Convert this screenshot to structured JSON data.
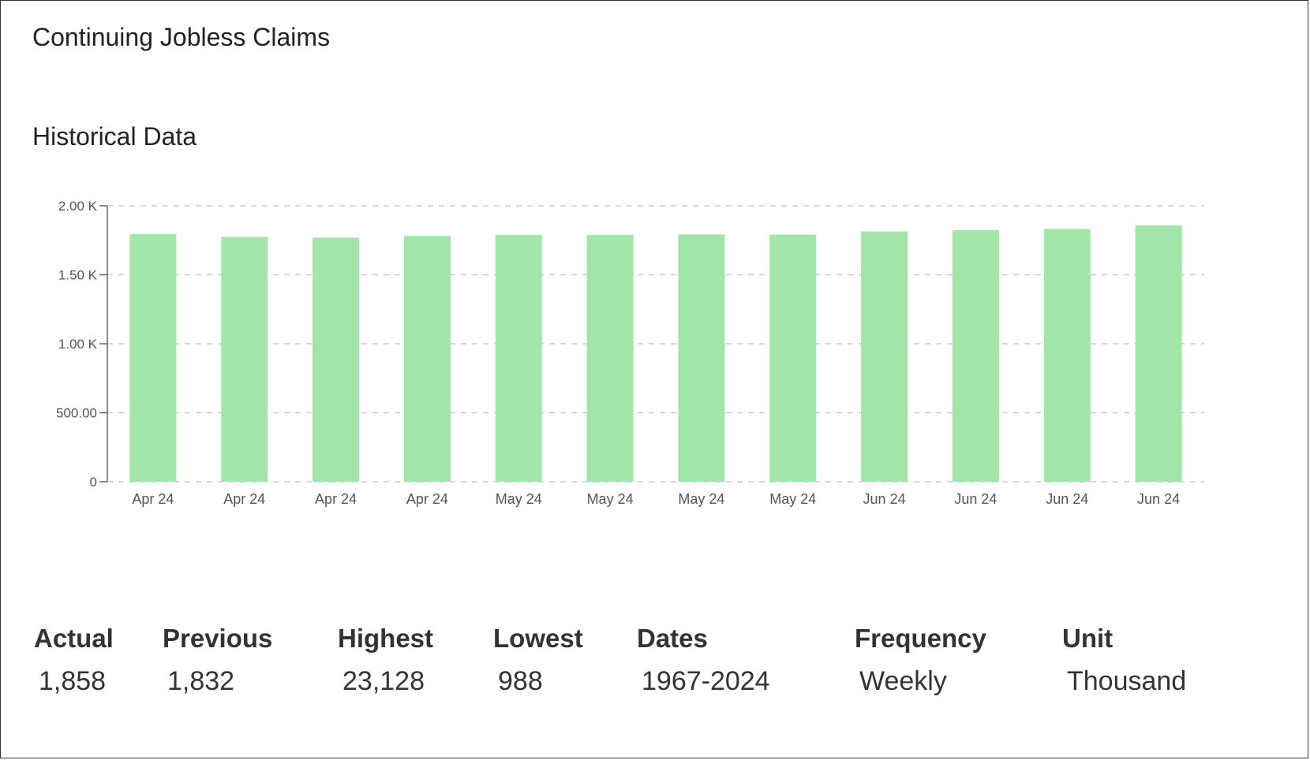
{
  "header": {
    "title": "Continuing Jobless Claims"
  },
  "section": {
    "title": "Historical Data"
  },
  "chart_data": {
    "type": "bar",
    "categories": [
      "Apr 24",
      "Apr 24",
      "Apr 24",
      "Apr 24",
      "May 24",
      "May 24",
      "May 24",
      "May 24",
      "Jun 24",
      "Jun 24",
      "Jun 24",
      "Jun 24"
    ],
    "values": [
      1.796,
      1.774,
      1.769,
      1.781,
      1.788,
      1.789,
      1.792,
      1.791,
      1.814,
      1.823,
      1.832,
      1.858
    ],
    "ylim": [
      0,
      2.0
    ],
    "yticks": [
      0,
      0.5,
      1.0,
      1.5,
      2.0
    ],
    "ytick_labels": [
      "0",
      "500.00",
      "1.00 K",
      "1.50 K",
      "2.00 K"
    ],
    "grid": true,
    "bar_color": "#a1e5a8",
    "axis_color": "#666666",
    "grid_color": "#cccccc"
  },
  "stats": [
    {
      "label": "Actual",
      "value": "1,858"
    },
    {
      "label": "Previous",
      "value": "1,832"
    },
    {
      "label": "Highest",
      "value": "23,128"
    },
    {
      "label": "Lowest",
      "value": "988"
    },
    {
      "label": "Dates",
      "value": "1967-2024"
    },
    {
      "label": "Frequency",
      "value": "Weekly"
    },
    {
      "label": "Unit",
      "value": "Thousand"
    }
  ]
}
